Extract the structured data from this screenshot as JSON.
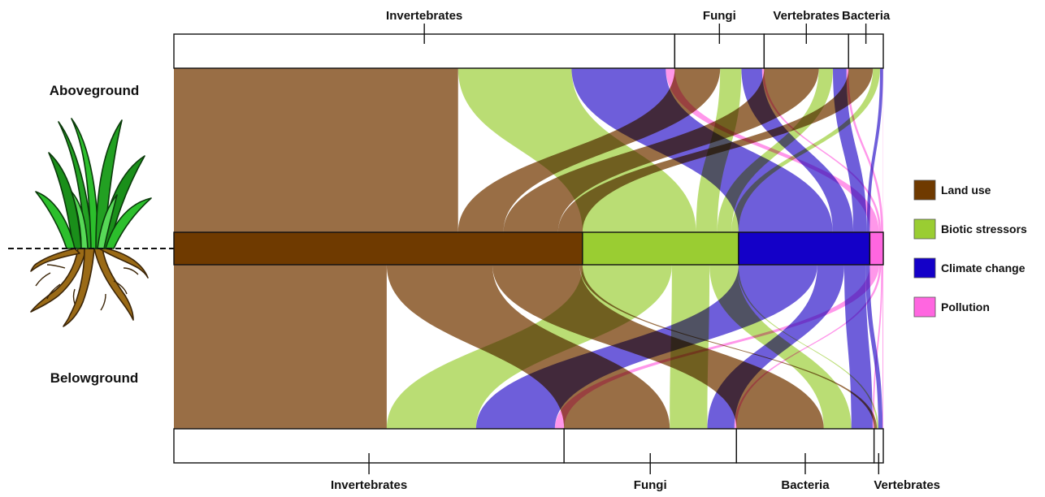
{
  "side_labels": {
    "above": "Aboveground",
    "below": "Belowground"
  },
  "drivers": [
    {
      "key": "land",
      "label": "Land use",
      "color": "#6f3a00",
      "flow_color": "#8b5a2b",
      "value": 0.576
    },
    {
      "key": "biotic",
      "label": "Biotic stressors",
      "color": "#9acd32",
      "flow_color": "#9acd32",
      "value": 0.22
    },
    {
      "key": "climate",
      "label": "Climate change",
      "color": "#1400c8",
      "flow_color": "#2a12c8",
      "value": 0.185
    },
    {
      "key": "pollution",
      "label": "Pollution",
      "color": "#ff66e0",
      "flow_color": "#ff66e0",
      "value": 0.019
    }
  ],
  "aboveground_groups": [
    {
      "label": "Invertebrates",
      "value": 0.706
    },
    {
      "label": "Fungi",
      "value": 0.126
    },
    {
      "label": "Vertebrates",
      "value": 0.119
    },
    {
      "label": "Bacteria",
      "value": 0.049
    }
  ],
  "belowground_groups": [
    {
      "label": "Invertebrates",
      "value": 0.55
    },
    {
      "label": "Fungi",
      "value": 0.243
    },
    {
      "label": "Bacteria",
      "value": 0.194
    },
    {
      "label": "Vertebrates",
      "value": 0.013
    }
  ],
  "flows_above": [
    {
      "driver": "land",
      "group": 0,
      "value": 0.4006
    },
    {
      "driver": "biotic",
      "group": 0,
      "value": 0.16
    },
    {
      "driver": "climate",
      "group": 0,
      "value": 0.1327
    },
    {
      "driver": "pollution",
      "group": 0,
      "value": 0.0127
    },
    {
      "driver": "land",
      "group": 1,
      "value": 0.064
    },
    {
      "driver": "biotic",
      "group": 1,
      "value": 0.03
    },
    {
      "driver": "climate",
      "group": 1,
      "value": 0.029
    },
    {
      "driver": "pollution",
      "group": 1,
      "value": 0.003
    },
    {
      "driver": "land",
      "group": 2,
      "value": 0.077
    },
    {
      "driver": "biotic",
      "group": 2,
      "value": 0.02
    },
    {
      "driver": "climate",
      "group": 2,
      "value": 0.019
    },
    {
      "driver": "pollution",
      "group": 2,
      "value": 0.003
    },
    {
      "driver": "land",
      "group": 3,
      "value": 0.0344
    },
    {
      "driver": "biotic",
      "group": 3,
      "value": 0.01
    },
    {
      "driver": "climate",
      "group": 3,
      "value": 0.0043
    },
    {
      "driver": "pollution",
      "group": 3,
      "value": 0.0003
    }
  ],
  "flows_below": [
    {
      "driver": "land",
      "group": 0,
      "value": 0.3
    },
    {
      "driver": "biotic",
      "group": 0,
      "value": 0.126
    },
    {
      "driver": "climate",
      "group": 0,
      "value": 0.111
    },
    {
      "driver": "pollution",
      "group": 0,
      "value": 0.013
    },
    {
      "driver": "land",
      "group": 1,
      "value": 0.149
    },
    {
      "driver": "biotic",
      "group": 1,
      "value": 0.053
    },
    {
      "driver": "climate",
      "group": 1,
      "value": 0.038
    },
    {
      "driver": "pollution",
      "group": 1,
      "value": 0.003
    },
    {
      "driver": "land",
      "group": 2,
      "value": 0.123
    },
    {
      "driver": "biotic",
      "group": 2,
      "value": 0.039
    },
    {
      "driver": "climate",
      "group": 2,
      "value": 0.03
    },
    {
      "driver": "pollution",
      "group": 2,
      "value": 0.002
    },
    {
      "driver": "land",
      "group": 3,
      "value": 0.004
    },
    {
      "driver": "biotic",
      "group": 3,
      "value": 0.002
    },
    {
      "driver": "climate",
      "group": 3,
      "value": 0.006
    },
    {
      "driver": "pollution",
      "group": 3,
      "value": 0.001
    }
  ],
  "icons": {
    "plant": "plant-with-roots-icon",
    "ground_line": "ground-dashed-line"
  }
}
